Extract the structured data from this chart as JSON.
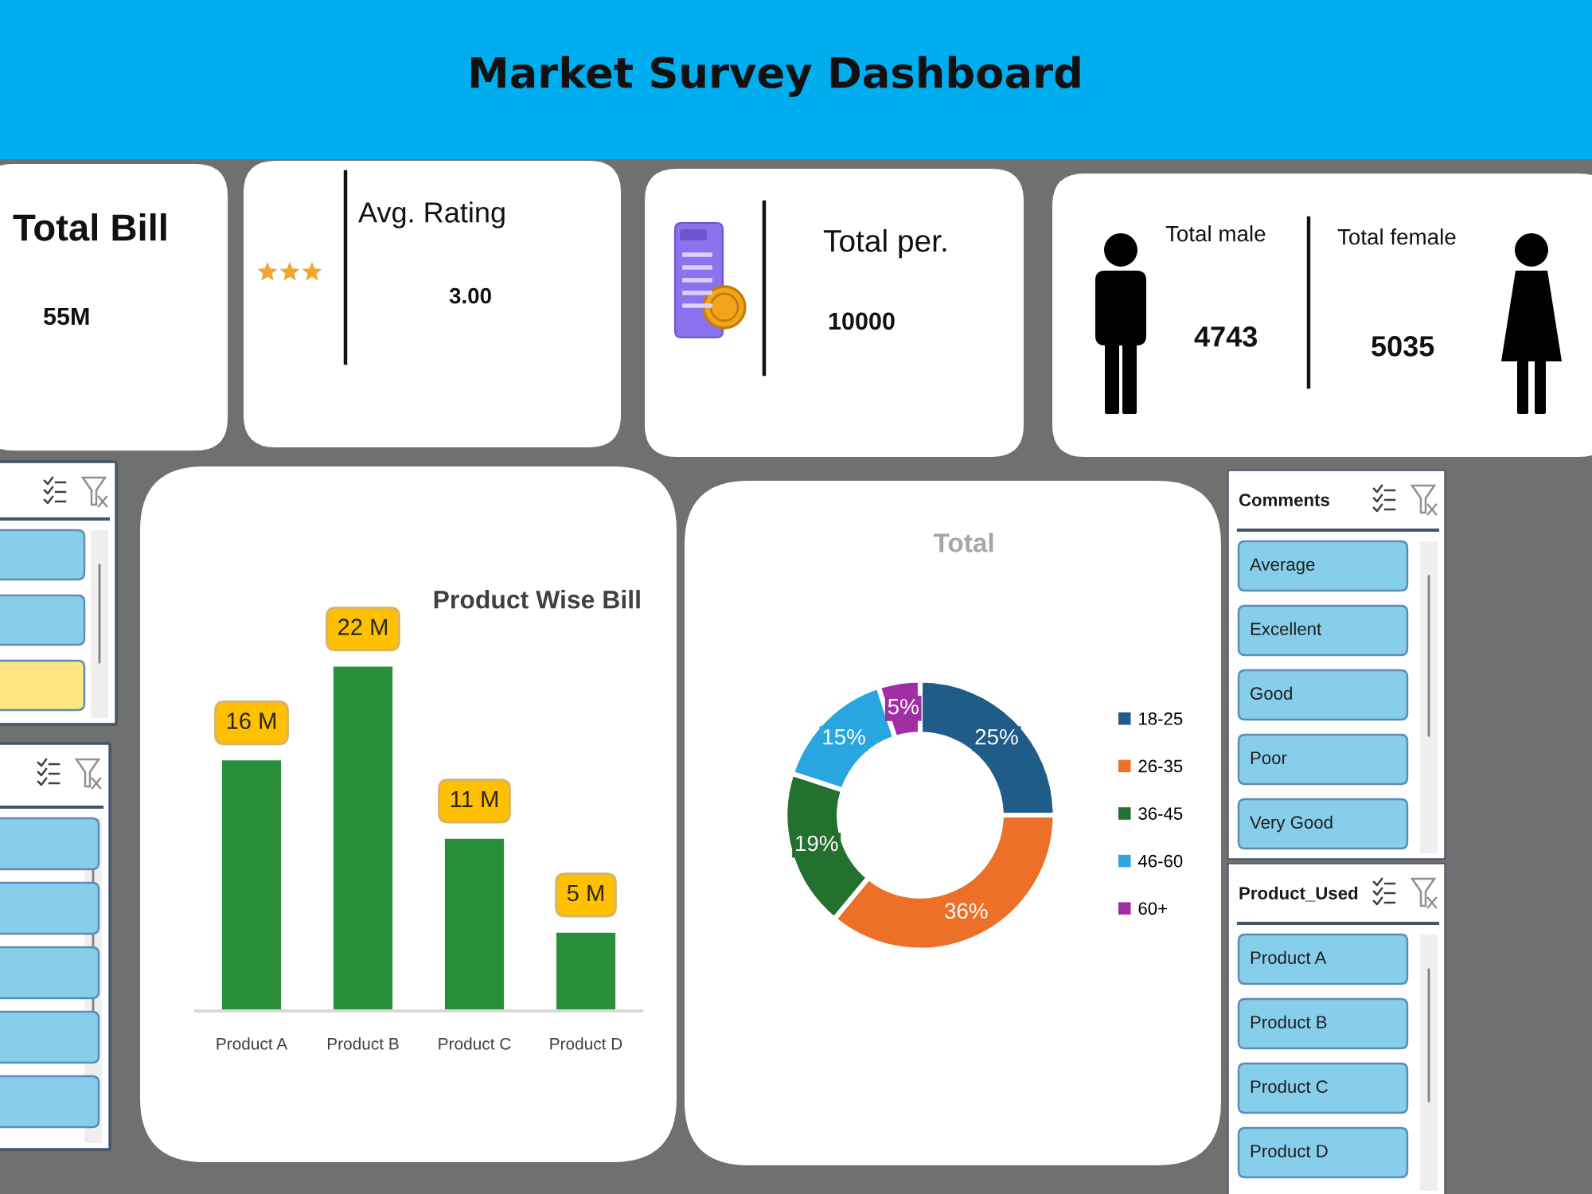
{
  "chart_data": [
    {
      "type": "other",
      "title": "Market Survey Dashboard"
    },
    {
      "type": "other",
      "title": "Total Bill",
      "annotations": [
        "55M"
      ]
    },
    {
      "type": "other",
      "title": "Avg. Rating",
      "annotations": [
        "3.00"
      ]
    },
    {
      "type": "other",
      "title": "Total per.",
      "annotations": [
        "10000"
      ]
    },
    {
      "type": "other",
      "annotations": [
        "Total male",
        "4743",
        "Total female",
        "5035"
      ]
    },
    {
      "type": "bar",
      "title": "Product Wise Bill",
      "categories": [
        "Product A",
        "Product B",
        "Product C",
        "Product D"
      ],
      "values": [
        16,
        22,
        11,
        5
      ],
      "value_labels": [
        "16 M",
        "22 M",
        "11 M",
        "5 M"
      ],
      "color": "#2a8f3a",
      "tick_labels": "x"
    },
    {
      "type": "donut",
      "title": "Total",
      "categories": [
        "18-25",
        "26-35",
        "36-45",
        "46-60",
        "60+"
      ],
      "values": [
        25,
        36,
        19,
        15,
        5
      ],
      "value_labels": [
        "25%",
        "36%",
        "19%",
        "15%",
        "5%"
      ],
      "colors": [
        "#1f5c87",
        "#ed7028",
        "#23702f",
        "#29a6e0",
        "#a02ea5"
      ],
      "legend": "right"
    },
    {
      "type": "other",
      "title": "Comments",
      "annotations": [
        "Average",
        "Excellent",
        "Good",
        "Poor",
        "Very Good"
      ]
    },
    {
      "type": "other",
      "title": "Product_Used",
      "annotations": [
        "Product A",
        "Product B",
        "Product C",
        "Product D"
      ]
    }
  ]
}
